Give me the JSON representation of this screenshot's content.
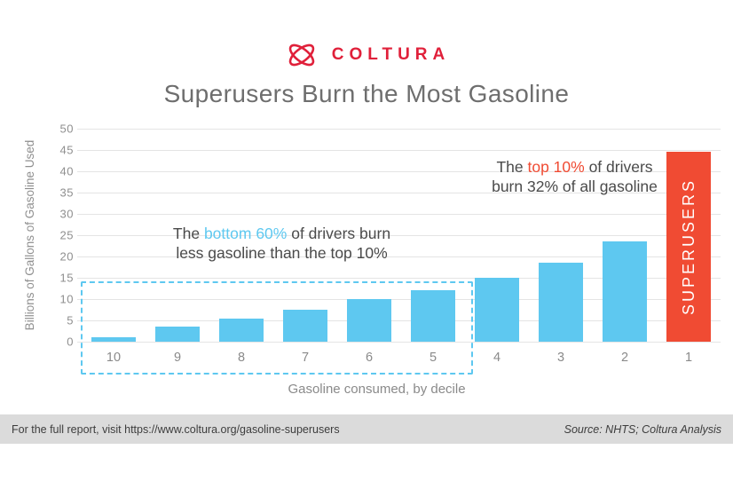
{
  "brand": {
    "name": "COLTURA",
    "logo_icon": "coltura-knot-icon",
    "brand_color": "#e0203a"
  },
  "chart_data": {
    "type": "bar",
    "title": "Superusers Burn the Most Gasoline",
    "categories": [
      "10",
      "9",
      "8",
      "7",
      "6",
      "5",
      "4",
      "3",
      "2",
      "1"
    ],
    "values": [
      1,
      3.5,
      5.5,
      7.5,
      10,
      12,
      15,
      18.5,
      23.5,
      44.5
    ],
    "xlabel": "Gasoline consumed, by decile",
    "ylabel": "Billions of Gallons of Gasoline Used",
    "ylim": [
      0,
      50
    ],
    "ytick_step": 5,
    "grid": true,
    "legend": "none",
    "bar_color": "#5ec8f0",
    "highlight_index": 9,
    "highlight_color": "#f04b33",
    "highlight_label": "SUPERUSERS",
    "outline_color": "#5ec8f0"
  },
  "callouts": {
    "left": {
      "line1_pre": "The ",
      "line1_highlight": "bottom 60%",
      "line1_post": " of drivers burn",
      "line2": "less gasoline than the top 10%",
      "highlight_color": "#5ec8f0"
    },
    "right": {
      "line1_pre": "The ",
      "line1_highlight": "top 10%",
      "line1_post": " of drivers",
      "line2": "burn 32% of all gasoline",
      "highlight_color": "#f04b33"
    }
  },
  "footer": {
    "left": "For the full report, visit https://www.coltura.org/gasoline-superusers",
    "right": "Source: NHTS; Coltura Analysis"
  }
}
